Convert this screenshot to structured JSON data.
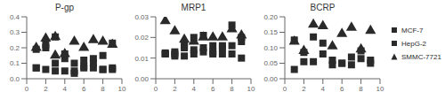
{
  "chart_data": [
    {
      "type": "scatter",
      "title": "P-gp",
      "xlim": [
        0,
        10
      ],
      "xticks": [
        0,
        2,
        4,
        6,
        8,
        10
      ],
      "ylim": [
        0,
        0.4
      ],
      "yticks": [
        {
          "value": 0,
          "label": "0.0"
        },
        0.1,
        0.2,
        0.3,
        0.4
      ],
      "grid": false,
      "series": [
        {
          "name": "MCF-7",
          "color": "#2a2a2a",
          "marker": "square",
          "x": [
            1,
            1,
            2,
            2,
            3,
            3,
            4,
            4,
            5,
            5,
            6,
            6,
            7,
            7,
            8,
            8,
            9,
            9
          ],
          "values": [
            0.07,
            0.19,
            0.22,
            0.2,
            0.1,
            0.27,
            0.13,
            0.16,
            0.05,
            0.1,
            0.08,
            0.12,
            0.13,
            0.1,
            0.06,
            0.15,
            0.07,
            0.23
          ]
        },
        {
          "name": "HepG-2",
          "color": "#2a2a2a",
          "marker": "square",
          "x": [
            1,
            2,
            3,
            4,
            5,
            6,
            7,
            8,
            9
          ],
          "values": [
            0.07,
            0.06,
            0.05,
            0.05,
            0.035,
            0.07,
            0.07,
            0.06,
            0.06
          ]
        },
        {
          "name": "SMMC-7721",
          "color": "#2a2a2a",
          "marker": "triangle",
          "x": [
            1,
            2,
            3,
            3,
            4,
            5,
            6,
            7,
            8,
            9
          ],
          "values": [
            0.2,
            0.26,
            0.15,
            0.27,
            0.16,
            0.24,
            0.2,
            0.25,
            0.24,
            0.22
          ]
        }
      ]
    },
    {
      "type": "scatter",
      "title": "MRP1",
      "xlim": [
        0,
        10
      ],
      "xticks": [
        0,
        2,
        4,
        6,
        8,
        10
      ],
      "ylim": [
        0,
        0.03
      ],
      "yticks": [
        {
          "value": 0,
          "label": "0.00"
        },
        0.01,
        0.02,
        0.03
      ],
      "grid": false,
      "series": [
        {
          "name": "MCF-7",
          "color": "#2a2a2a",
          "marker": "square",
          "x": [
            1,
            1,
            2,
            2,
            3,
            3,
            4,
            4,
            5,
            5,
            6,
            6,
            7,
            7,
            8,
            8,
            9,
            9
          ],
          "values": [
            0.012,
            0.0125,
            0.013,
            0.012,
            0.016,
            0.015,
            0.014,
            0.02,
            0.015,
            0.021,
            0.016,
            0.013,
            0.016,
            0.015,
            0.016,
            0.026,
            0.018,
            0.02
          ]
        },
        {
          "name": "HepG-2",
          "color": "#2a2a2a",
          "marker": "square",
          "x": [
            1,
            2,
            3,
            4,
            5,
            6,
            7,
            8,
            9
          ],
          "values": [
            0.012,
            0.011,
            0.011,
            0.012,
            0.013,
            0.012,
            0.012,
            0.012,
            0.01
          ]
        },
        {
          "name": "SMMC-7721",
          "color": "#2a2a2a",
          "marker": "triangle",
          "x": [
            1,
            2,
            3,
            4,
            5,
            6,
            7,
            8,
            9
          ],
          "values": [
            0.028,
            0.023,
            0.019,
            0.018,
            0.02,
            0.02,
            0.02,
            0.024,
            0.021
          ]
        }
      ]
    },
    {
      "type": "scatter",
      "title": "BCRP",
      "xlim": [
        0,
        10
      ],
      "xticks": [
        0,
        2,
        4,
        6,
        8,
        10
      ],
      "ylim": [
        0,
        0.2
      ],
      "yticks": [
        {
          "value": 0,
          "label": "0.00"
        },
        0.05,
        {
          "value": 0.1,
          "label": "0.10"
        },
        0.15,
        {
          "value": 0.2,
          "label": "0.20"
        }
      ],
      "grid": false,
      "legend": "right",
      "series": [
        {
          "name": "MCF-7",
          "color": "#2a2a2a",
          "marker": "square",
          "x": [
            1,
            2,
            3,
            4,
            5,
            6,
            7,
            8,
            9
          ],
          "values": [
            0.125,
            0.085,
            0.135,
            0.115,
            0.06,
            0.05,
            0.07,
            0.09,
            0.06
          ]
        },
        {
          "name": "HepG-2",
          "color": "#2a2a2a",
          "marker": "square",
          "x": [
            1,
            2,
            3,
            4,
            5,
            6,
            7,
            8,
            9
          ],
          "values": [
            0.03,
            0.055,
            0.055,
            0.08,
            0.045,
            0.05,
            0.045,
            0.065,
            0.05
          ]
        },
        {
          "name": "SMMC-7721",
          "color": "#2a2a2a",
          "marker": "triangle",
          "x": [
            1,
            2,
            3,
            4,
            5,
            6,
            7,
            8,
            9
          ],
          "values": [
            0.12,
            0.09,
            0.175,
            0.17,
            0.105,
            0.145,
            0.165,
            0.095,
            0.155
          ]
        }
      ]
    }
  ]
}
